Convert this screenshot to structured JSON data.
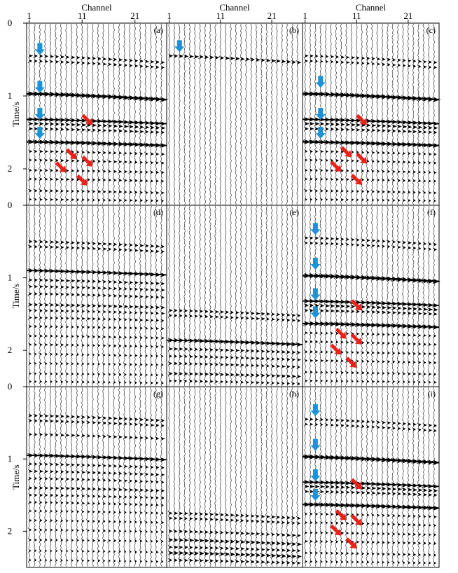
{
  "figure": {
    "x_axis_title": "Channel",
    "y_axis_title": "Time/s",
    "x_ticks": [
      1,
      11,
      21
    ],
    "y_ticks": [
      0,
      1,
      2
    ],
    "colors": {
      "trace": "#000000",
      "frame": "#000000",
      "blue_arrow": "#1a93d8",
      "red_arrow": "#e8221a"
    }
  },
  "chart_data": [
    {
      "type": "seismic-wiggle",
      "label": "(a)",
      "channels": 26,
      "time_range_s": [
        0,
        2.5
      ],
      "events": [
        {
          "t0": 0.45,
          "dip": 0.09,
          "strength": 1.0
        },
        {
          "t0": 0.52,
          "dip": 0.09,
          "strength": 0.9
        },
        {
          "t0": 0.97,
          "dip": 0.08,
          "strength": 2.2
        },
        {
          "t0": 1.32,
          "dip": 0.06,
          "strength": 1.6
        },
        {
          "t0": 1.38,
          "dip": 0.06,
          "strength": 1.2
        },
        {
          "t0": 1.45,
          "dip": 0.05,
          "strength": 1.0
        },
        {
          "t0": 1.63,
          "dip": 0.05,
          "strength": 1.9
        },
        {
          "t0": 1.76,
          "dip": 0.04,
          "strength": 0.8
        },
        {
          "t0": 1.88,
          "dip": 0.04,
          "strength": 0.8
        },
        {
          "t0": 2.02,
          "dip": 0.03,
          "strength": 0.8
        },
        {
          "t0": 2.14,
          "dip": 0.03,
          "strength": 0.8
        },
        {
          "t0": 2.3,
          "dip": 0.03,
          "strength": 0.8
        },
        {
          "t0": 2.42,
          "dip": 0.02,
          "strength": 0.7
        }
      ],
      "blue_arrows": [
        {
          "channel": 3,
          "t": 0.38
        },
        {
          "channel": 3,
          "t": 0.9
        },
        {
          "channel": 3,
          "t": 1.27
        },
        {
          "channel": 3,
          "t": 1.53
        }
      ],
      "red_arrows": [
        {
          "channel": 13,
          "t": 1.4
        },
        {
          "channel": 10,
          "t": 1.87
        },
        {
          "channel": 13,
          "t": 1.97
        },
        {
          "channel": 8,
          "t": 2.05
        },
        {
          "channel": 12,
          "t": 2.23
        }
      ]
    },
    {
      "type": "seismic-wiggle",
      "label": "(b)",
      "channels": 26,
      "time_range_s": [
        0,
        2.5
      ],
      "events": [
        {
          "t0": 0.45,
          "dip": 0.09,
          "strength": 1.2
        }
      ],
      "blue_arrows": [
        {
          "channel": 3,
          "t": 0.34
        }
      ],
      "red_arrows": []
    },
    {
      "type": "seismic-wiggle",
      "label": "(c)",
      "channels": 26,
      "time_range_s": [
        0,
        2.5
      ],
      "events": [
        {
          "t0": 0.45,
          "dip": 0.09,
          "strength": 0.9
        },
        {
          "t0": 0.52,
          "dip": 0.09,
          "strength": 0.8
        },
        {
          "t0": 0.97,
          "dip": 0.08,
          "strength": 2.2
        },
        {
          "t0": 1.32,
          "dip": 0.06,
          "strength": 1.6
        },
        {
          "t0": 1.38,
          "dip": 0.06,
          "strength": 1.2
        },
        {
          "t0": 1.45,
          "dip": 0.05,
          "strength": 1.0
        },
        {
          "t0": 1.63,
          "dip": 0.05,
          "strength": 1.9
        },
        {
          "t0": 1.76,
          "dip": 0.04,
          "strength": 0.7
        },
        {
          "t0": 1.88,
          "dip": 0.04,
          "strength": 0.7
        },
        {
          "t0": 2.02,
          "dip": 0.03,
          "strength": 0.7
        },
        {
          "t0": 2.14,
          "dip": 0.03,
          "strength": 0.7
        },
        {
          "t0": 2.3,
          "dip": 0.03,
          "strength": 0.7
        },
        {
          "t0": 2.42,
          "dip": 0.02,
          "strength": 0.6
        }
      ],
      "blue_arrows": [
        {
          "channel": 4,
          "t": 0.83
        },
        {
          "channel": 4,
          "t": 1.27
        },
        {
          "channel": 4,
          "t": 1.53
        }
      ],
      "red_arrows": [
        {
          "channel": 13,
          "t": 1.4
        },
        {
          "channel": 10,
          "t": 1.84
        },
        {
          "channel": 13,
          "t": 1.93
        },
        {
          "channel": 8,
          "t": 2.04
        },
        {
          "channel": 12,
          "t": 2.22
        }
      ]
    },
    {
      "type": "seismic-wiggle",
      "label": "(d)",
      "channels": 26,
      "time_range_s": [
        0,
        2.5
      ],
      "events": [
        {
          "t0": 0.5,
          "dip": 0.07,
          "strength": 1.0
        },
        {
          "t0": 0.57,
          "dip": 0.07,
          "strength": 0.9
        },
        {
          "t0": 0.9,
          "dip": 0.06,
          "strength": 1.6
        },
        {
          "t0": 1.03,
          "dip": 0.05,
          "strength": 1.0
        },
        {
          "t0": 1.12,
          "dip": 0.05,
          "strength": 0.9
        },
        {
          "t0": 1.22,
          "dip": 0.05,
          "strength": 0.9
        },
        {
          "t0": 1.37,
          "dip": 0.04,
          "strength": 1.1
        },
        {
          "t0": 1.45,
          "dip": 0.04,
          "strength": 0.8
        },
        {
          "t0": 1.55,
          "dip": 0.04,
          "strength": 0.8
        },
        {
          "t0": 1.67,
          "dip": 0.03,
          "strength": 0.7
        },
        {
          "t0": 1.8,
          "dip": 0.03,
          "strength": 0.7
        },
        {
          "t0": 1.92,
          "dip": 0.03,
          "strength": 0.7
        },
        {
          "t0": 2.05,
          "dip": 0.03,
          "strength": 0.6
        },
        {
          "t0": 2.18,
          "dip": 0.02,
          "strength": 0.6
        },
        {
          "t0": 2.32,
          "dip": 0.02,
          "strength": 0.6
        },
        {
          "t0": 2.43,
          "dip": 0.02,
          "strength": 0.6
        }
      ],
      "blue_arrows": [],
      "red_arrows": []
    },
    {
      "type": "seismic-wiggle",
      "label": "(e)",
      "channels": 26,
      "time_range_s": [
        0,
        2.5
      ],
      "events": [
        {
          "t0": 1.45,
          "dip": 0.07,
          "strength": 1.0
        },
        {
          "t0": 1.52,
          "dip": 0.07,
          "strength": 0.9
        },
        {
          "t0": 1.86,
          "dip": 0.06,
          "strength": 1.6
        },
        {
          "t0": 1.98,
          "dip": 0.05,
          "strength": 1.0
        },
        {
          "t0": 2.08,
          "dip": 0.05,
          "strength": 0.9
        },
        {
          "t0": 2.18,
          "dip": 0.05,
          "strength": 0.9
        },
        {
          "t0": 2.32,
          "dip": 0.04,
          "strength": 1.1
        },
        {
          "t0": 2.42,
          "dip": 0.04,
          "strength": 0.8
        }
      ],
      "blue_arrows": [],
      "red_arrows": []
    },
    {
      "type": "seismic-wiggle",
      "label": "(f)",
      "channels": 26,
      "time_range_s": [
        0,
        2.5
      ],
      "events": [
        {
          "t0": 0.45,
          "dip": 0.09,
          "strength": 0.9
        },
        {
          "t0": 0.52,
          "dip": 0.09,
          "strength": 0.8
        },
        {
          "t0": 0.97,
          "dip": 0.08,
          "strength": 2.2
        },
        {
          "t0": 1.32,
          "dip": 0.06,
          "strength": 1.6
        },
        {
          "t0": 1.38,
          "dip": 0.06,
          "strength": 1.2
        },
        {
          "t0": 1.45,
          "dip": 0.05,
          "strength": 1.0
        },
        {
          "t0": 1.63,
          "dip": 0.05,
          "strength": 1.9
        },
        {
          "t0": 1.76,
          "dip": 0.04,
          "strength": 0.7
        },
        {
          "t0": 1.88,
          "dip": 0.04,
          "strength": 0.7
        },
        {
          "t0": 2.02,
          "dip": 0.03,
          "strength": 0.7
        },
        {
          "t0": 2.14,
          "dip": 0.03,
          "strength": 0.7
        },
        {
          "t0": 2.3,
          "dip": 0.03,
          "strength": 0.7
        },
        {
          "t0": 2.42,
          "dip": 0.02,
          "strength": 0.6
        }
      ],
      "blue_arrows": [
        {
          "channel": 3,
          "t": 0.35
        },
        {
          "channel": 3,
          "t": 0.83
        },
        {
          "channel": 3,
          "t": 1.25
        },
        {
          "channel": 3,
          "t": 1.5
        }
      ],
      "red_arrows": [
        {
          "channel": 12,
          "t": 1.45
        },
        {
          "channel": 9,
          "t": 1.84
        },
        {
          "channel": 12,
          "t": 1.92
        },
        {
          "channel": 8,
          "t": 2.06
        },
        {
          "channel": 11,
          "t": 2.24
        }
      ]
    },
    {
      "type": "seismic-wiggle",
      "label": "(g)",
      "channels": 26,
      "time_range_s": [
        0,
        2.5
      ],
      "events": [
        {
          "t0": 0.4,
          "dip": 0.07,
          "strength": 1.0
        },
        {
          "t0": 0.47,
          "dip": 0.07,
          "strength": 0.9
        },
        {
          "t0": 0.66,
          "dip": 0.06,
          "strength": 0.9
        },
        {
          "t0": 0.95,
          "dip": 0.06,
          "strength": 1.6
        },
        {
          "t0": 1.07,
          "dip": 0.05,
          "strength": 0.9
        },
        {
          "t0": 1.17,
          "dip": 0.05,
          "strength": 0.9
        },
        {
          "t0": 1.27,
          "dip": 0.05,
          "strength": 0.8
        },
        {
          "t0": 1.4,
          "dip": 0.04,
          "strength": 1.0
        },
        {
          "t0": 1.5,
          "dip": 0.04,
          "strength": 0.8
        },
        {
          "t0": 1.6,
          "dip": 0.04,
          "strength": 0.7
        },
        {
          "t0": 1.72,
          "dip": 0.03,
          "strength": 0.6
        },
        {
          "t0": 1.85,
          "dip": 0.03,
          "strength": 0.6
        },
        {
          "t0": 1.98,
          "dip": 0.03,
          "strength": 0.6
        },
        {
          "t0": 2.12,
          "dip": 0.02,
          "strength": 0.6
        },
        {
          "t0": 2.27,
          "dip": 0.02,
          "strength": 0.5
        },
        {
          "t0": 2.4,
          "dip": 0.02,
          "strength": 0.5
        }
      ],
      "blue_arrows": [],
      "red_arrows": []
    },
    {
      "type": "seismic-wiggle",
      "label": "(h)",
      "channels": 26,
      "time_range_s": [
        0,
        2.5
      ],
      "events": [
        {
          "t0": 1.75,
          "dip": 0.07,
          "strength": 1.0
        },
        {
          "t0": 1.82,
          "dip": 0.07,
          "strength": 0.9
        },
        {
          "t0": 2.0,
          "dip": 0.06,
          "strength": 1.0
        },
        {
          "t0": 2.12,
          "dip": 0.06,
          "strength": 1.3
        },
        {
          "t0": 2.22,
          "dip": 0.05,
          "strength": 1.0
        },
        {
          "t0": 2.3,
          "dip": 0.05,
          "strength": 1.4
        },
        {
          "t0": 2.4,
          "dip": 0.04,
          "strength": 1.0
        }
      ],
      "blue_arrows": [],
      "red_arrows": []
    },
    {
      "type": "seismic-wiggle",
      "label": "(i)",
      "channels": 26,
      "time_range_s": [
        0,
        2.5
      ],
      "events": [
        {
          "t0": 0.45,
          "dip": 0.09,
          "strength": 0.9
        },
        {
          "t0": 0.52,
          "dip": 0.09,
          "strength": 0.8
        },
        {
          "t0": 0.97,
          "dip": 0.08,
          "strength": 2.2
        },
        {
          "t0": 1.32,
          "dip": 0.06,
          "strength": 1.6
        },
        {
          "t0": 1.38,
          "dip": 0.06,
          "strength": 1.2
        },
        {
          "t0": 1.45,
          "dip": 0.05,
          "strength": 1.0
        },
        {
          "t0": 1.63,
          "dip": 0.05,
          "strength": 1.9
        },
        {
          "t0": 1.76,
          "dip": 0.04,
          "strength": 0.7
        },
        {
          "t0": 1.88,
          "dip": 0.04,
          "strength": 0.7
        },
        {
          "t0": 2.02,
          "dip": 0.03,
          "strength": 0.7
        },
        {
          "t0": 2.14,
          "dip": 0.03,
          "strength": 0.7
        },
        {
          "t0": 2.3,
          "dip": 0.03,
          "strength": 0.7
        },
        {
          "t0": 2.42,
          "dip": 0.02,
          "strength": 0.6
        }
      ],
      "blue_arrows": [
        {
          "channel": 3,
          "t": 0.35
        },
        {
          "channel": 3,
          "t": 0.83
        },
        {
          "channel": 3,
          "t": 1.25
        },
        {
          "channel": 3,
          "t": 1.52
        }
      ],
      "red_arrows": [
        {
          "channel": 12,
          "t": 1.42
        },
        {
          "channel": 9,
          "t": 1.85
        },
        {
          "channel": 12,
          "t": 1.92
        },
        {
          "channel": 8,
          "t": 2.06
        },
        {
          "channel": 11,
          "t": 2.24
        }
      ]
    }
  ]
}
